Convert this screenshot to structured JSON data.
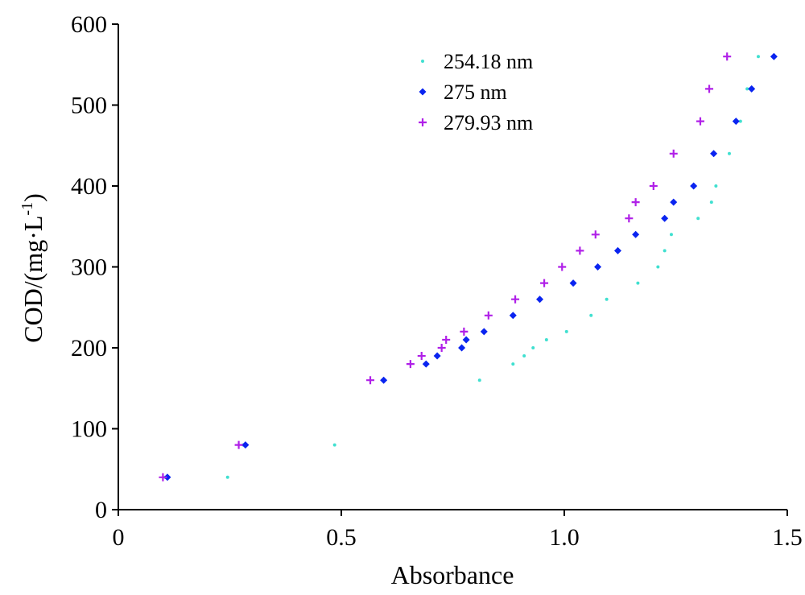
{
  "chart_data": {
    "type": "scatter",
    "title": "",
    "xlabel": "Absorbance",
    "ylabel_main": "COD/(mg·L",
    "ylabel_sup": "-1",
    "ylabel_close": ")",
    "xlim": [
      0,
      1.5
    ],
    "ylim": [
      0,
      600
    ],
    "x_ticks": [
      0,
      0.5,
      1.0,
      1.5
    ],
    "x_tick_labels": [
      "0",
      "0.5",
      "1.0",
      "1.5"
    ],
    "y_ticks": [
      0,
      100,
      200,
      300,
      400,
      500,
      600
    ],
    "y_tick_labels": [
      "0",
      "100",
      "200",
      "300",
      "400",
      "500",
      "600"
    ],
    "grid": false,
    "legend_position": "top-right",
    "series": [
      {
        "name": "254.18 nm",
        "color": "#40e0d0",
        "marker": "dot",
        "points": [
          [
            0.105,
            40
          ],
          [
            0.245,
            40
          ],
          [
            0.28,
            80
          ],
          [
            0.485,
            80
          ],
          [
            0.81,
            160
          ],
          [
            0.885,
            180
          ],
          [
            0.91,
            190
          ],
          [
            0.93,
            200
          ],
          [
            0.96,
            210
          ],
          [
            1.005,
            220
          ],
          [
            1.06,
            240
          ],
          [
            1.095,
            260
          ],
          [
            1.165,
            280
          ],
          [
            1.21,
            300
          ],
          [
            1.225,
            320
          ],
          [
            1.24,
            340
          ],
          [
            1.3,
            360
          ],
          [
            1.33,
            380
          ],
          [
            1.34,
            400
          ],
          [
            1.37,
            440
          ],
          [
            1.395,
            480
          ],
          [
            1.41,
            520
          ],
          [
            1.435,
            560
          ]
        ]
      },
      {
        "name": "275 nm",
        "color": "#0a24f0",
        "marker": "diamond",
        "points": [
          [
            0.11,
            40
          ],
          [
            0.285,
            80
          ],
          [
            0.595,
            160
          ],
          [
            0.69,
            180
          ],
          [
            0.715,
            190
          ],
          [
            0.77,
            200
          ],
          [
            0.78,
            210
          ],
          [
            0.82,
            220
          ],
          [
            0.885,
            240
          ],
          [
            0.945,
            260
          ],
          [
            1.02,
            280
          ],
          [
            1.075,
            300
          ],
          [
            1.12,
            320
          ],
          [
            1.16,
            340
          ],
          [
            1.225,
            360
          ],
          [
            1.245,
            380
          ],
          [
            1.29,
            400
          ],
          [
            1.335,
            440
          ],
          [
            1.385,
            480
          ],
          [
            1.42,
            520
          ],
          [
            1.47,
            560
          ]
        ]
      },
      {
        "name": "279.93 nm",
        "color": "#b020e8",
        "marker": "plus",
        "points": [
          [
            0.1,
            40
          ],
          [
            0.27,
            80
          ],
          [
            0.565,
            160
          ],
          [
            0.655,
            180
          ],
          [
            0.68,
            190
          ],
          [
            0.725,
            200
          ],
          [
            0.735,
            210
          ],
          [
            0.775,
            220
          ],
          [
            0.83,
            240
          ],
          [
            0.89,
            260
          ],
          [
            0.955,
            280
          ],
          [
            0.995,
            300
          ],
          [
            1.035,
            320
          ],
          [
            1.07,
            340
          ],
          [
            1.145,
            360
          ],
          [
            1.16,
            380
          ],
          [
            1.2,
            400
          ],
          [
            1.245,
            440
          ],
          [
            1.305,
            480
          ],
          [
            1.325,
            520
          ],
          [
            1.365,
            560
          ]
        ]
      }
    ]
  }
}
